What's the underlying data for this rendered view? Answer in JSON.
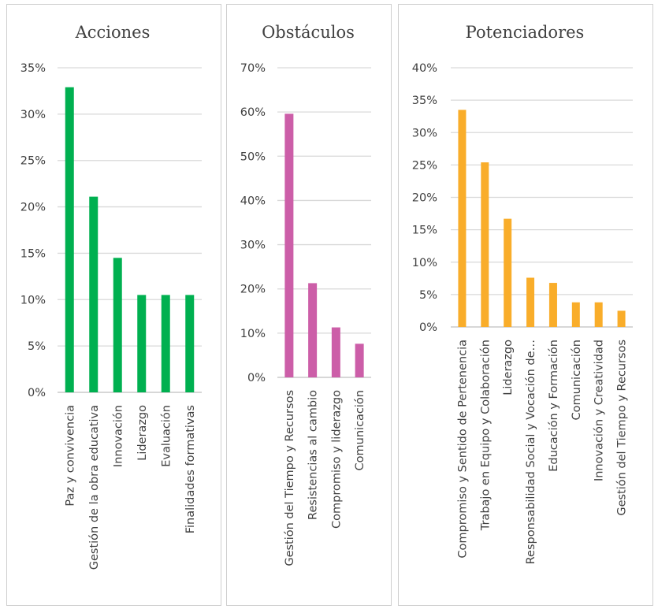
{
  "chart_data": [
    {
      "type": "bar",
      "title": "Acciones",
      "color": "#00b050",
      "categories": [
        "Paz y convivencia",
        "Gestión de la obra educativa",
        "Innovación",
        "Liderazgo",
        "Evaluación",
        "Finalidades formativas"
      ],
      "values": [
        32.9,
        21.1,
        14.5,
        10.5,
        10.5,
        10.5
      ],
      "ylim": [
        0,
        35
      ],
      "yticks": [
        "0%",
        "5%",
        "10%",
        "15%",
        "20%",
        "25%",
        "30%",
        "35%"
      ],
      "xlabel": "",
      "ylabel": "",
      "grid": true
    },
    {
      "type": "bar",
      "title": "Obstáculos",
      "color": "#cc5ea8",
      "categories": [
        "Gestión del Tiempo y Recursos",
        "Resistencias al cambio",
        "Compromiso y liderazgo",
        "Comunicación"
      ],
      "values": [
        59.6,
        21.3,
        11.3,
        7.6
      ],
      "ylim": [
        0,
        70
      ],
      "yticks": [
        "0%",
        "10%",
        "20%",
        "30%",
        "40%",
        "50%",
        "60%",
        "70%"
      ],
      "xlabel": "",
      "ylabel": "",
      "grid": true
    },
    {
      "type": "bar",
      "title": "Potenciadores",
      "color": "#f9ad2a",
      "categories": [
        "Compromiso y Sentido de Pertenencia",
        "Trabajo en Equipo y Colaboración",
        "Liderazgo",
        "Responsabilidad Social y Vocación de…",
        "Educación y Formación",
        "Comunicación",
        "Innovación y Creatividad",
        "Gestión del Tiempo y Recursos"
      ],
      "values": [
        33.5,
        25.4,
        16.7,
        7.6,
        6.8,
        3.8,
        3.8,
        2.5
      ],
      "ylim": [
        0,
        40
      ],
      "yticks": [
        "0%",
        "5%",
        "10%",
        "15%",
        "20%",
        "25%",
        "30%",
        "35%",
        "40%"
      ],
      "xlabel": "",
      "ylabel": "",
      "grid": true
    }
  ]
}
